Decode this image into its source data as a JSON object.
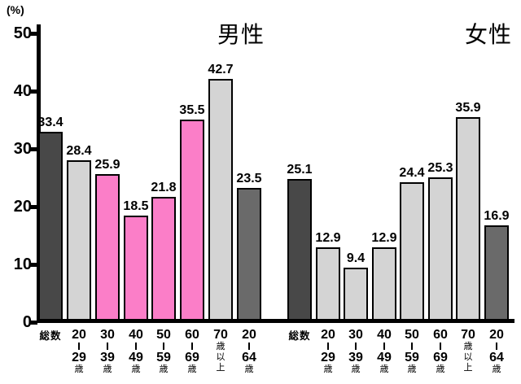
{
  "chart_data": {
    "type": "bar",
    "unit_label": "(%)",
    "male_title": "男性",
    "female_title": "女性",
    "ylim": [
      0,
      50
    ],
    "yticks": [
      0,
      10,
      20,
      30,
      40,
      50
    ],
    "grid": "off",
    "legend": "none",
    "categories": [
      "総数",
      "20−29歳",
      "30−39歳",
      "40−49歳",
      "50−59歳",
      "60−69歳",
      "70歳以上",
      "20−64歳"
    ],
    "category_label_lines": [
      [
        "総数"
      ],
      [
        "20",
        "|",
        "29",
        "歳"
      ],
      [
        "30",
        "|",
        "39",
        "歳"
      ],
      [
        "40",
        "|",
        "49",
        "歳"
      ],
      [
        "50",
        "|",
        "59",
        "歳"
      ],
      [
        "60",
        "|",
        "69",
        "歳"
      ],
      [
        "70",
        "歳",
        "以",
        "上"
      ],
      [
        "20",
        "|",
        "64",
        "歳"
      ]
    ],
    "series": [
      {
        "name": "男性",
        "values": [
          33.4,
          28.4,
          25.9,
          18.5,
          21.8,
          35.5,
          42.7,
          23.5
        ],
        "bar_colors": [
          "#484848",
          "#d4d4d4",
          "#fb7ec8",
          "#fb7ec8",
          "#fb7ec8",
          "#fb7ec8",
          "#d4d4d4",
          "#6a6a6a"
        ]
      },
      {
        "name": "女性",
        "values": [
          25.1,
          12.9,
          9.4,
          12.9,
          24.4,
          25.3,
          35.9,
          16.9
        ],
        "bar_colors": [
          "#484848",
          "#d4d4d4",
          "#d4d4d4",
          "#d4d4d4",
          "#d4d4d4",
          "#d4d4d4",
          "#d4d4d4",
          "#6a6a6a"
        ]
      }
    ],
    "colors": {
      "total_bar": "#484848",
      "age_bar": "#d4d4d4",
      "male_highlight_bar": "#fb7ec8",
      "age_20_64_bar": "#6a6a6a",
      "bar_border": "#000000",
      "axis": "#000000",
      "text": "#000000",
      "background": "#ffffff"
    }
  }
}
